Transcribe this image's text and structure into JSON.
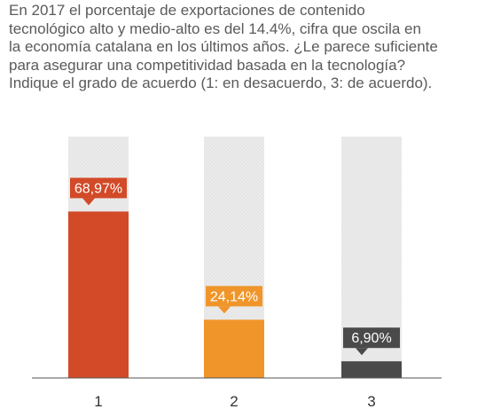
{
  "question": {
    "lines": [
      "En 2017 el porcentaje de exportaciones de contenido",
      "tecnológico alto y medio-alto es del 14.4%, cifra que oscila en",
      "la economía catalana en los últimos años. ¿Le parece suficiente",
      "para asegurar una competitividad basada en la tecnología?",
      "Indique el grado de acuerdo (1: en desacuerdo, 3: de acuerdo)."
    ]
  },
  "chart_data": {
    "type": "bar",
    "title": "",
    "xlabel": "",
    "ylabel": "",
    "categories": [
      "1",
      "2",
      "3"
    ],
    "values": [
      68.97,
      24.14,
      6.9
    ],
    "value_labels": [
      "68,97%",
      "24,14%",
      "6,90%"
    ],
    "ylim": [
      0,
      100
    ],
    "unit": "%",
    "grid": false,
    "legend": "none",
    "colors": [
      "#d24a27",
      "#f0952a",
      "#4a4a4a"
    ],
    "track_color": "#ebebeb",
    "track_pattern_color": "#d8d8d8",
    "axis_color": "#555555",
    "label_text_color": "#ffffff"
  }
}
